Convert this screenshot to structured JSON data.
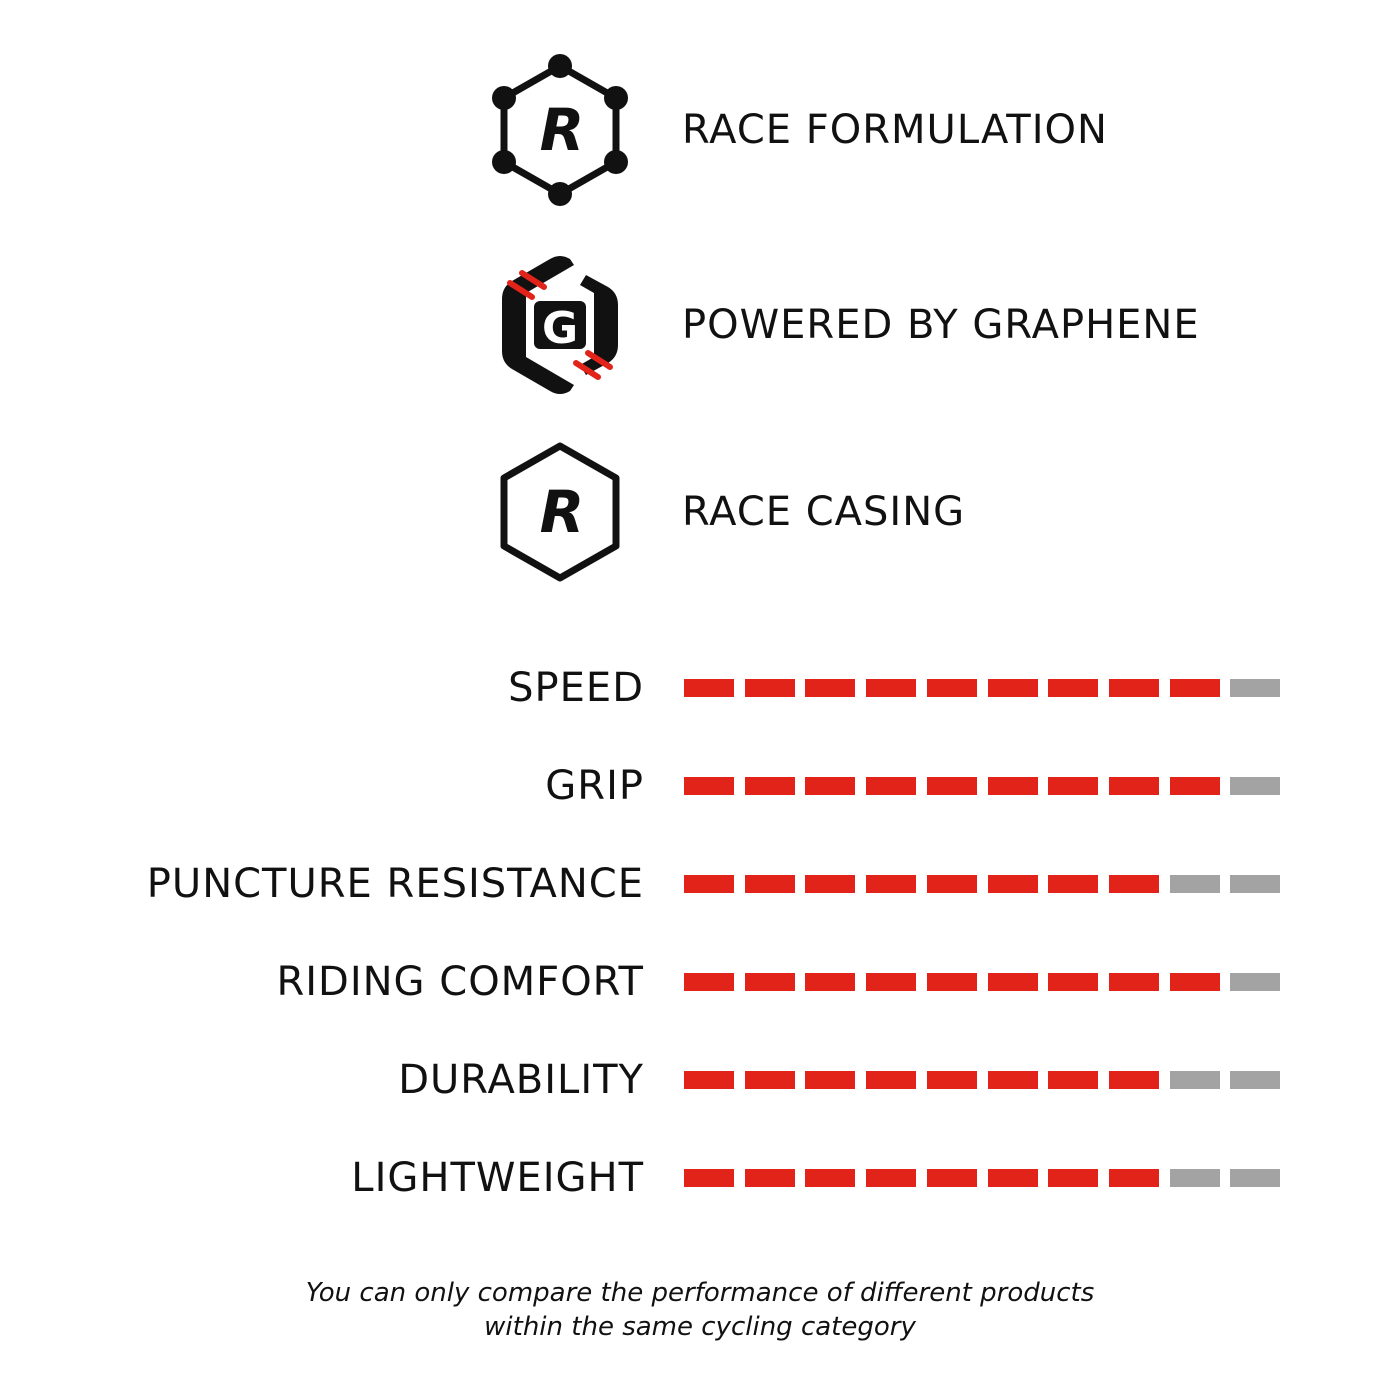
{
  "features": [
    {
      "icon": "race-formulation-hexagon-icon",
      "label": "RACE FORMULATION",
      "emblem_letter": "R"
    },
    {
      "icon": "graphene-hexagon-icon",
      "label": "POWERED BY GRAPHENE",
      "emblem_letter": "G"
    },
    {
      "icon": "race-casing-hexagon-icon",
      "label": "RACE CASING",
      "emblem_letter": "R"
    }
  ],
  "chart_data": {
    "type": "bar",
    "categories": [
      "SPEED",
      "GRIP",
      "PUNCTURE RESISTANCE",
      "RIDING COMFORT",
      "DURABILITY",
      "LIGHTWEIGHT"
    ],
    "values": [
      9,
      9,
      8,
      9,
      8,
      8
    ],
    "max": 10,
    "grid": false,
    "colors": {
      "filled": "#e2231a",
      "empty": "#a3a3a3"
    }
  },
  "colors": {
    "accent_red": "#e2231a",
    "icon_black": "#111111"
  },
  "footnote": {
    "line1": "You can only compare the performance of different products",
    "line2": "within the same cycling category"
  }
}
